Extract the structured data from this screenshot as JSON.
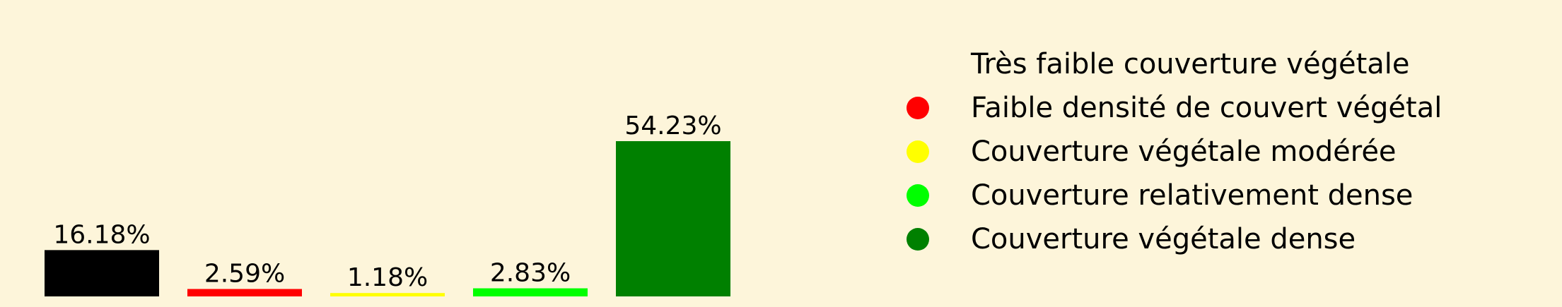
{
  "chart_data": {
    "type": "bar",
    "categories": [
      "Très faible couverture végétale",
      "Faible densité de couvert végétal",
      "Couverture végétale modérée",
      "Couverture relativement dense",
      "Couverture végétale dense"
    ],
    "values": [
      16.18,
      2.59,
      1.18,
      2.83,
      54.23
    ],
    "value_labels": [
      "16.18%",
      "2.59%",
      "1.18%",
      "2.83%",
      "54.23%"
    ],
    "colors": [
      "#000000",
      "#ff0000",
      "#ffff00",
      "#00ff00",
      "#008000"
    ],
    "ylim": [
      0,
      54.23
    ],
    "title": "",
    "xlabel": "",
    "ylabel": "",
    "grid": false,
    "legend_placement": "right"
  },
  "legend": {
    "items": [
      {
        "label": "Très faible couverture végétale",
        "color": "#000000"
      },
      {
        "label": "Faible densité de couvert végétal",
        "color": "#ff0000"
      },
      {
        "label": "Couverture végétale modérée",
        "color": "#ffff00"
      },
      {
        "label": "Couverture relativement dense",
        "color": "#00ff00"
      },
      {
        "label": "Couverture végétale dense",
        "color": "#008000"
      }
    ]
  },
  "background_color": "#fdf5da"
}
